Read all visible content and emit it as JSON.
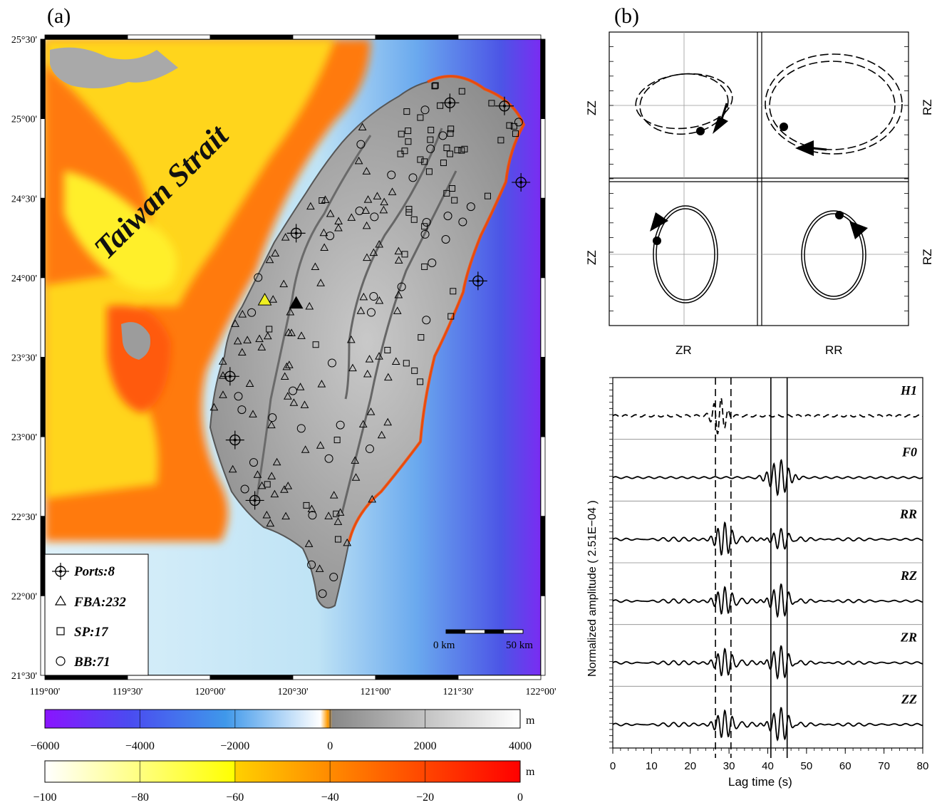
{
  "chart_data": [
    {
      "panel": "(a)",
      "type": "map",
      "x_ticks": [
        "119°00'",
        "119°30'",
        "120°00'",
        "120°30'",
        "121°00'",
        "121°30'",
        "122°00'"
      ],
      "y_ticks": [
        "25°30'",
        "25°00'",
        "24°30'",
        "24°00'",
        "23°30'",
        "23°00'",
        "22°30'",
        "22°00'",
        "21°30'"
      ],
      "xlim": [
        119.0,
        122.0
      ],
      "ylim": [
        21.5,
        25.5
      ],
      "annotation": "Taiwan Strait",
      "legend": [
        {
          "symbol": "crosshair-circle",
          "label": "Ports:8"
        },
        {
          "symbol": "triangle",
          "label": "FBA:232"
        },
        {
          "symbol": "square",
          "label": "SP:17"
        },
        {
          "symbol": "circle",
          "label": "BB:71"
        }
      ],
      "scale_bar": [
        "0 km",
        "50 km"
      ],
      "ports": [
        {
          "lon": 121.45,
          "lat": 25.1
        },
        {
          "lon": 121.78,
          "lat": 25.08
        },
        {
          "lon": 121.88,
          "lat": 24.6
        },
        {
          "lon": 120.52,
          "lat": 24.28
        },
        {
          "lon": 121.62,
          "lat": 23.98
        },
        {
          "lon": 120.12,
          "lat": 23.38
        },
        {
          "lon": 120.15,
          "lat": 22.98
        },
        {
          "lon": 120.27,
          "lat": 22.6
        }
      ],
      "highlight_stations": [
        {
          "lon": 120.33,
          "lat": 23.86,
          "color": "#f0f020"
        },
        {
          "lon": 120.52,
          "lat": 23.84,
          "color": "#000000"
        }
      ]
    },
    {
      "panel": "(b)",
      "type": "particle-motion",
      "x_labels": [
        "ZR",
        "RR"
      ],
      "y_labels_left": [
        "ZZ",
        "ZZ"
      ],
      "y_labels_right": [
        "RZ",
        "RZ"
      ]
    },
    {
      "panel": "(b)",
      "type": "line",
      "traces": [
        "H1",
        "F0",
        "RR",
        "RZ",
        "ZR",
        "ZZ"
      ],
      "xlabel": "Lag time (s)",
      "ylabel": "Normalized amplitude ( 2.51E−04 )",
      "xlim": [
        0,
        80
      ],
      "x_ticks": [
        "0",
        "10",
        "20",
        "30",
        "40",
        "50",
        "60",
        "70",
        "80"
      ],
      "dashed_lines_s": [
        26.5,
        30.5
      ],
      "solid_lines_s": [
        40.8,
        45
      ]
    },
    {
      "type": "colorbar",
      "unit": "m",
      "ticks": [
        "−6000",
        "−4000",
        "−2000",
        "0",
        "2000",
        "4000"
      ],
      "range": [
        -6000,
        4000
      ]
    },
    {
      "type": "colorbar",
      "unit": "m",
      "ticks": [
        "−100",
        "−80",
        "−60",
        "−40",
        "−20",
        "0"
      ],
      "range": [
        -100,
        0
      ]
    }
  ],
  "colors": {
    "deep": "#7a1cff",
    "mid": "#3a8cf0",
    "shallow": "#ffffff",
    "strait_orange": "#ff7a0a",
    "strait_yellow": "#ffef2a",
    "land_gray": "#9a9a9a"
  }
}
